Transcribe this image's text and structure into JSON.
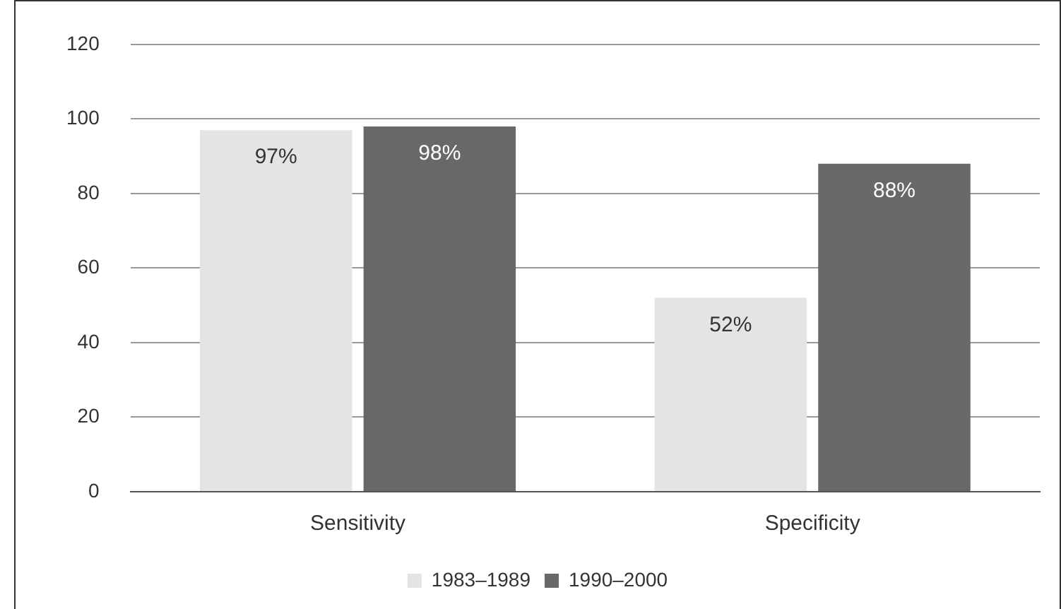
{
  "chart_data": {
    "type": "bar",
    "categories": [
      "Sensitivity",
      "Specificity"
    ],
    "series": [
      {
        "name": "1983–1989",
        "color": "#e4e4e2",
        "values": [
          97,
          52
        ],
        "value_labels": [
          "97%",
          "52%"
        ]
      },
      {
        "name": "1990–2000",
        "color": "#68686a",
        "values": [
          98,
          88
        ],
        "value_labels": [
          "98%",
          "88%"
        ]
      }
    ],
    "ylim": [
      0,
      120
    ],
    "yticks": [
      0,
      20,
      40,
      60,
      80,
      100,
      120
    ],
    "grid": "y",
    "legend": "bottom"
  }
}
